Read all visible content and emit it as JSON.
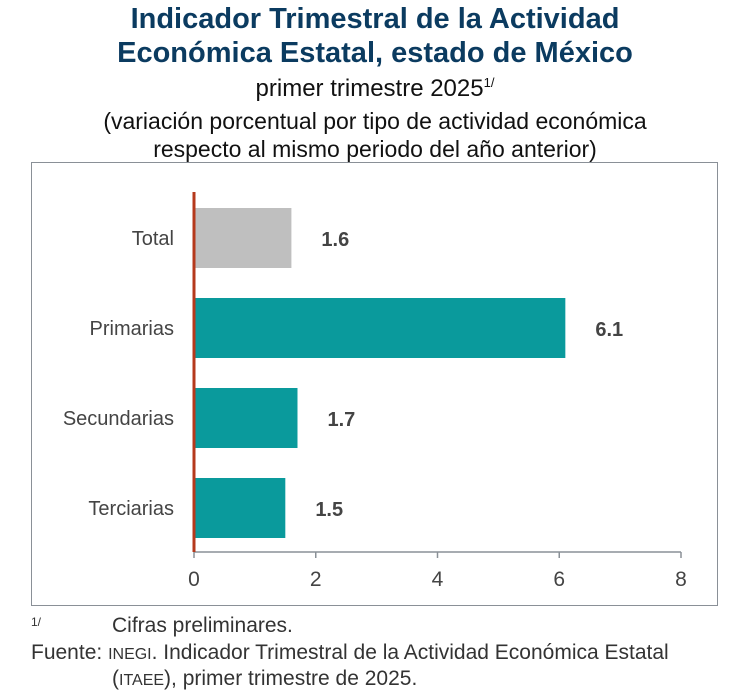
{
  "title": [
    "Indicador Trimestral de la Actividad",
    "Económica Estatal, estado de México"
  ],
  "subtitle": "primer trimestre 2025",
  "subtitle_note_mark": "1/",
  "description": [
    "(variación porcentual por tipo de actividad económica",
    "respecto al mismo periodo del año anterior)"
  ],
  "chart_data": {
    "type": "bar",
    "orientation": "horizontal",
    "categories": [
      "Total",
      "Primarias",
      "Secundarias",
      "Terciarias"
    ],
    "values": [
      1.6,
      6.1,
      1.7,
      1.5
    ],
    "data_labels": [
      "1.6",
      "6.1",
      "1.7",
      "1.5"
    ],
    "colors": [
      "#bfbfbf",
      "#0a9a9c",
      "#0a9a9c",
      "#0a9a9c"
    ],
    "zero_line_color": "#b5391c",
    "xlim": [
      0,
      8
    ],
    "xticks": [
      "0",
      "2",
      "4",
      "6",
      "8"
    ],
    "grid": false
  },
  "footnotes": {
    "mark": "1/",
    "note": "Cifras preliminares.",
    "source_label": "Fuente:",
    "source_org": "INEGI",
    "source_text": ". Indicador Trimestral de la Actividad Económica Estatal",
    "source_line2_open": "(",
    "source_abbr": "ITAEE",
    "source_line2_rest": "), primer trimestre de 2025."
  }
}
